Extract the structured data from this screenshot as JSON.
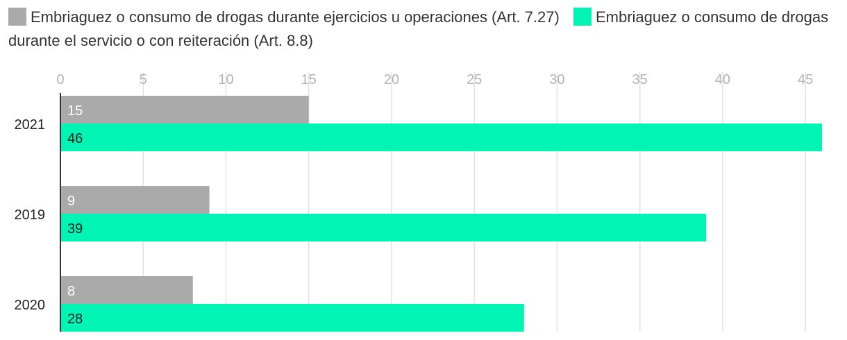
{
  "chart_data": {
    "type": "bar",
    "orientation": "horizontal",
    "categories": [
      "2021",
      "2019",
      "2020"
    ],
    "series": [
      {
        "name": "Embriaguez o consumo de drogas durante ejercicios u operaciones (Art. 7.27)",
        "values": [
          15,
          9,
          8
        ],
        "color": "#aaaaaa",
        "label_color": "#ffffff"
      },
      {
        "name": "Embriaguez o consumo de drogas durante el servicio o con reiteración (Art. 8.8)",
        "values": [
          46,
          39,
          28
        ],
        "color": "#00f5b5",
        "label_color": "#222222"
      }
    ],
    "x_ticks": [
      "0",
      "5",
      "10",
      "15",
      "20",
      "25",
      "30",
      "35",
      "40",
      "45"
    ],
    "xlim": [
      0,
      46
    ],
    "grid": true,
    "legend_position": "top"
  }
}
